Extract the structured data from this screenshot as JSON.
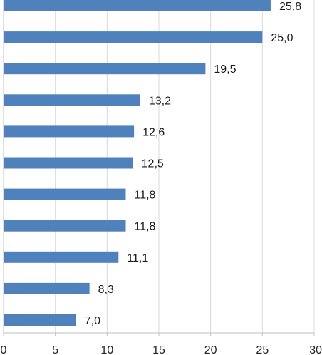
{
  "chart_data": {
    "type": "bar",
    "orientation": "horizontal",
    "values": [
      25.8,
      25.0,
      19.5,
      13.2,
      12.6,
      12.5,
      11.8,
      11.8,
      11.1,
      8.3,
      7.0
    ],
    "value_labels": [
      "25,8",
      "25,0",
      "19,5",
      "13,2",
      "12,6",
      "12,5",
      "11,8",
      "11,8",
      "11,1",
      "8,3",
      "7,0"
    ],
    "xlim": [
      0,
      30
    ],
    "xticks": [
      0,
      5,
      10,
      15,
      20,
      25,
      30
    ],
    "xtick_labels": [
      "0",
      "5",
      "10",
      "15",
      "20",
      "25",
      "30"
    ],
    "grid": "vertical",
    "bar_color": "#4f81bd",
    "grid_color": "#d9d9d9",
    "axis_color": "#bfbfbf"
  }
}
